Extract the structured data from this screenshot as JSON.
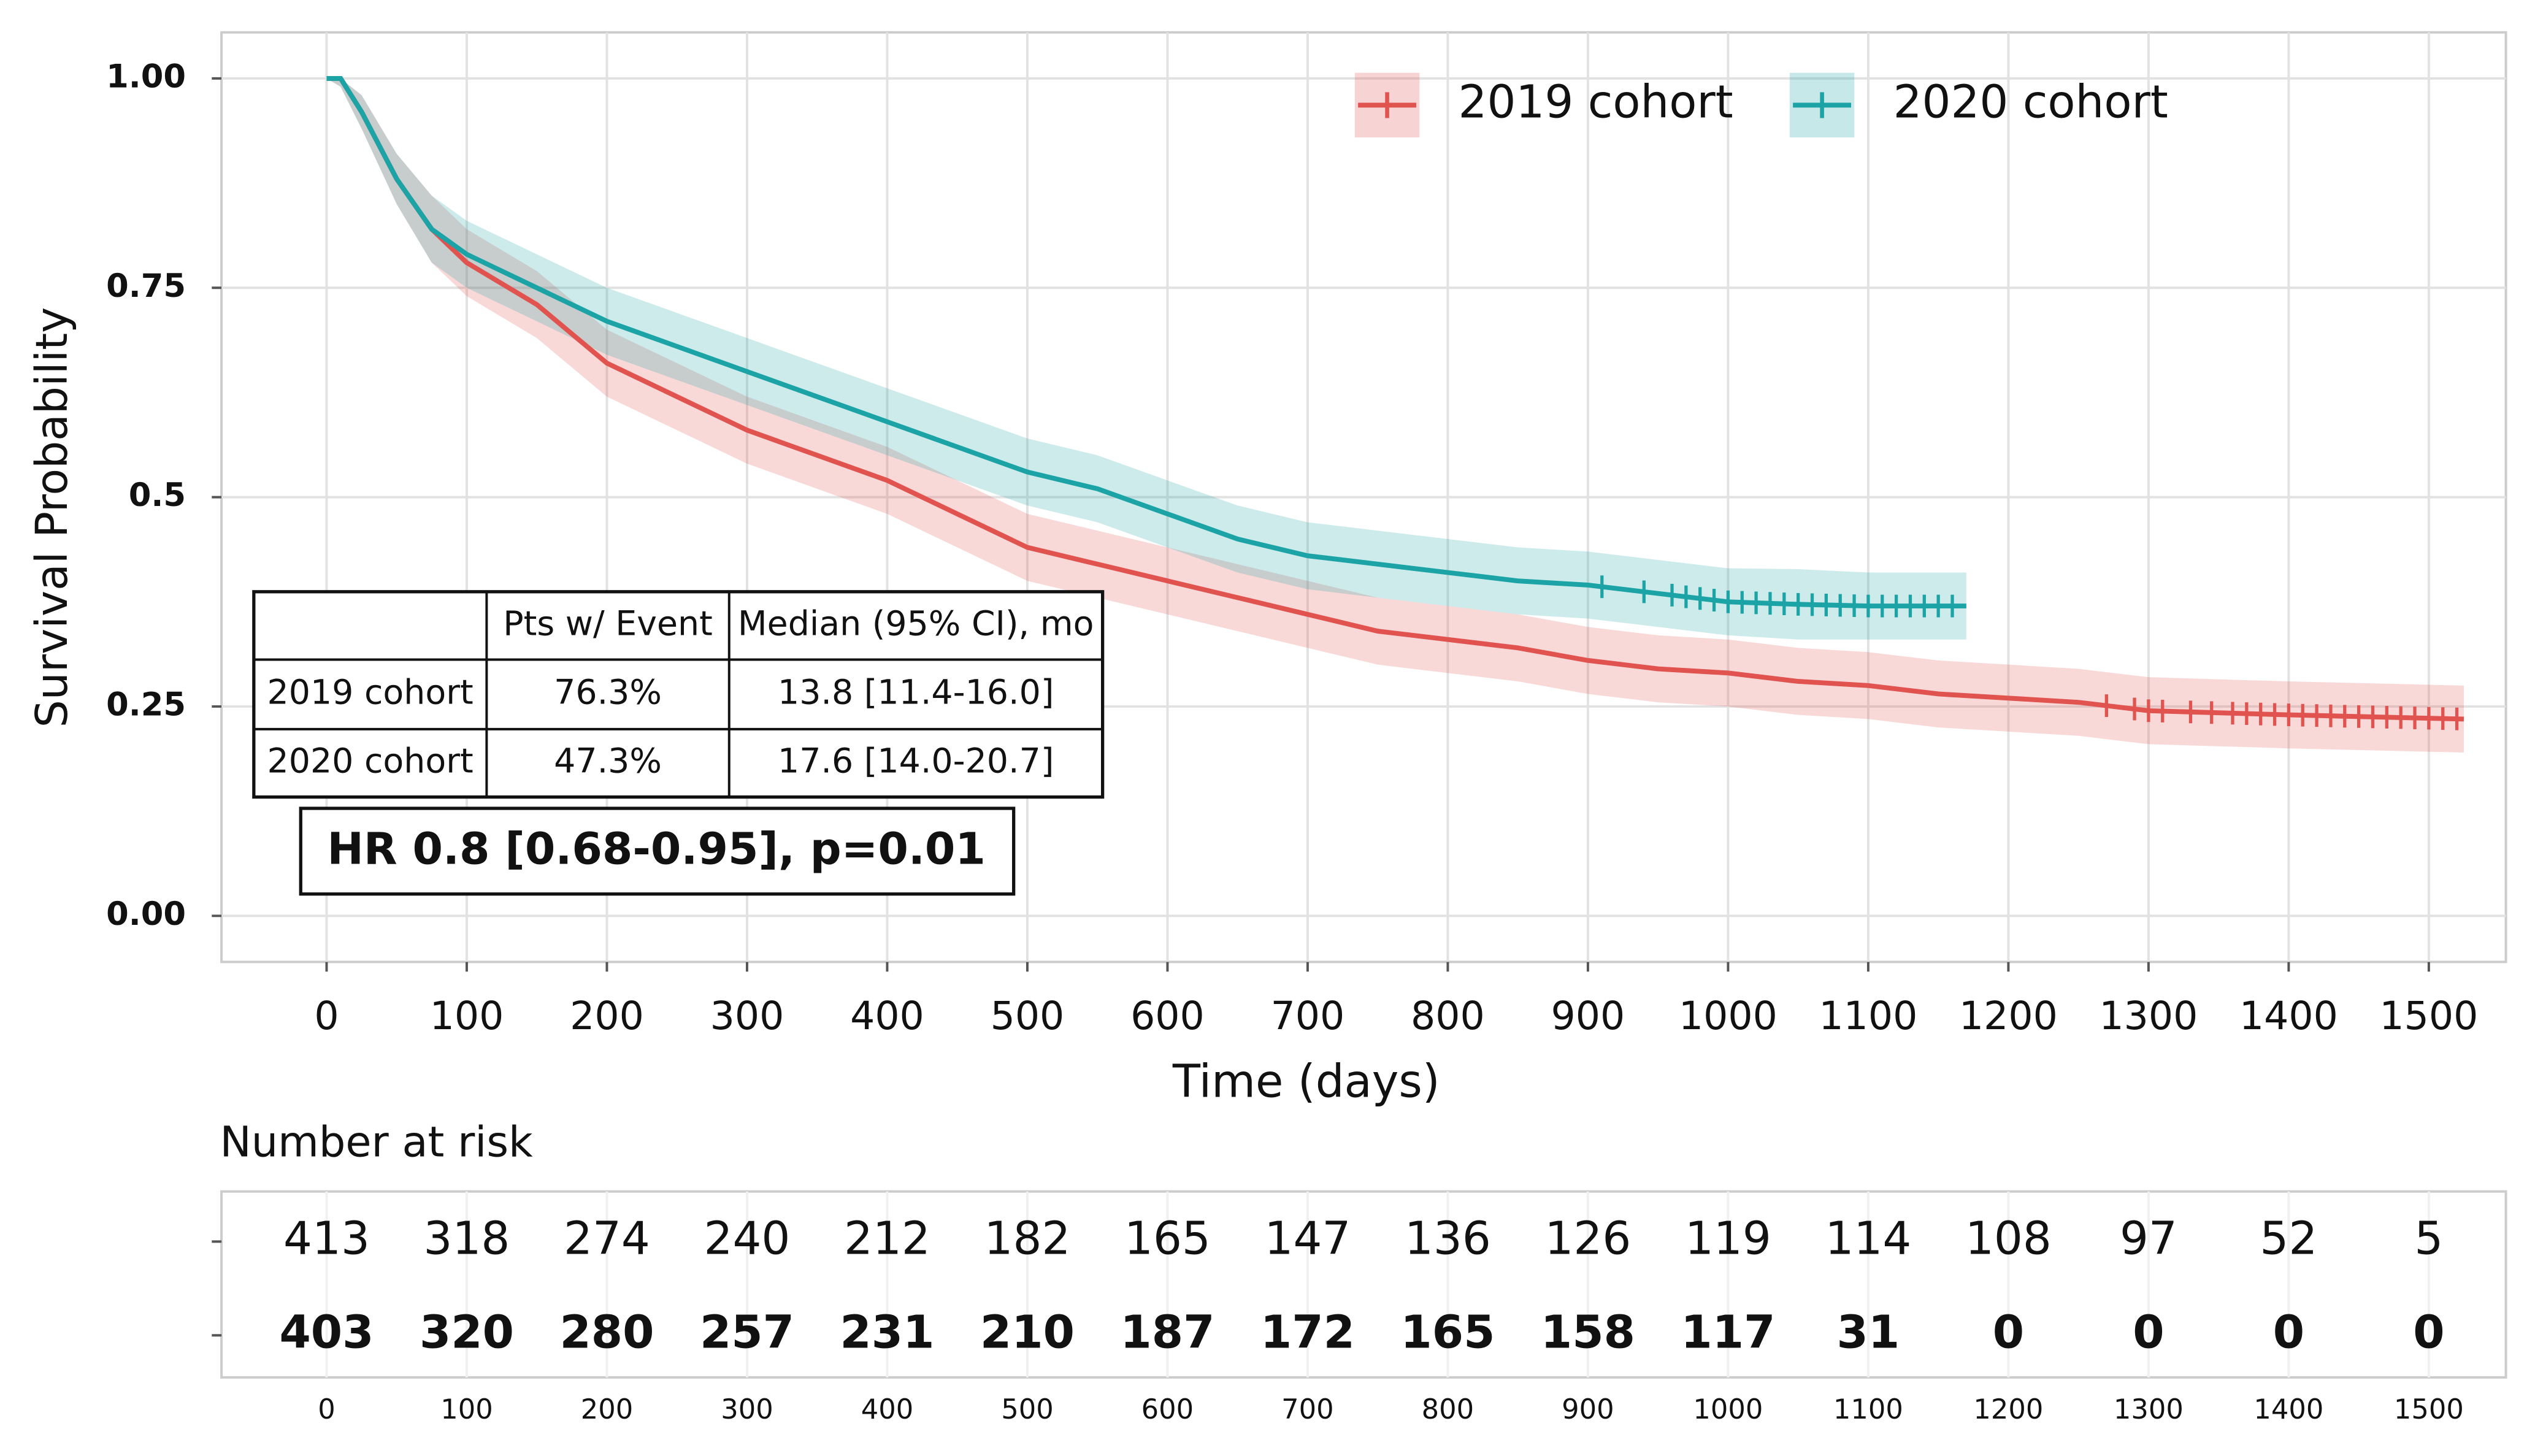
{
  "chart_data": {
    "type": "survival",
    "xlabel": "Time (days)",
    "ylabel": "Survival Probability",
    "xlim": [
      -75,
      1555
    ],
    "ylim": [
      -0.055,
      1.055
    ],
    "xticks": [
      0,
      100,
      200,
      300,
      400,
      500,
      600,
      700,
      800,
      900,
      1000,
      1100,
      1200,
      1300,
      1400,
      1500
    ],
    "yticks": [
      {
        "value": 0,
        "label": "0.00"
      },
      0.25,
      0.5,
      0.75,
      {
        "value": 1,
        "label": "1.00"
      }
    ],
    "grid": true,
    "legend": "top-right",
    "series": [
      {
        "name": "2019 cohort",
        "color": "#e0534f",
        "x": [
          0,
          10,
          25,
          50,
          75,
          100,
          150,
          200,
          250,
          300,
          350,
          400,
          450,
          500,
          550,
          600,
          650,
          700,
          750,
          800,
          850,
          900,
          950,
          1000,
          1050,
          1100,
          1150,
          1200,
          1250,
          1300,
          1400,
          1525
        ],
        "values": [
          1,
          1,
          0.96,
          0.88,
          0.82,
          0.78,
          0.73,
          0.66,
          0.62,
          0.58,
          0.55,
          0.52,
          0.48,
          0.44,
          0.42,
          0.4,
          0.38,
          0.36,
          0.34,
          0.33,
          0.32,
          0.305,
          0.295,
          0.29,
          0.28,
          0.275,
          0.265,
          0.26,
          0.255,
          0.245,
          0.24,
          0.235
        ],
        "lower": [
          1,
          0.99,
          0.94,
          0.85,
          0.78,
          0.74,
          0.69,
          0.62,
          0.58,
          0.54,
          0.51,
          0.48,
          0.44,
          0.4,
          0.38,
          0.36,
          0.34,
          0.32,
          0.3,
          0.29,
          0.28,
          0.265,
          0.255,
          0.25,
          0.24,
          0.235,
          0.225,
          0.22,
          0.215,
          0.205,
          0.2,
          0.195
        ],
        "upper": [
          1,
          1,
          0.98,
          0.91,
          0.86,
          0.82,
          0.77,
          0.7,
          0.66,
          0.62,
          0.59,
          0.56,
          0.52,
          0.48,
          0.46,
          0.44,
          0.42,
          0.4,
          0.38,
          0.37,
          0.36,
          0.345,
          0.335,
          0.33,
          0.32,
          0.315,
          0.305,
          0.3,
          0.295,
          0.285,
          0.28,
          0.275
        ],
        "censor_x": [
          1270,
          1290,
          1300,
          1310,
          1330,
          1345,
          1360,
          1370,
          1380,
          1390,
          1400,
          1410,
          1420,
          1430,
          1440,
          1450,
          1460,
          1470,
          1480,
          1490,
          1500,
          1510,
          1520
        ]
      },
      {
        "name": "2020 cohort",
        "color": "#1ba3a6",
        "x": [
          0,
          10,
          25,
          50,
          75,
          100,
          150,
          200,
          250,
          300,
          350,
          400,
          450,
          500,
          550,
          600,
          650,
          700,
          750,
          800,
          850,
          900,
          950,
          1000,
          1050,
          1100,
          1170
        ],
        "values": [
          1,
          1,
          0.96,
          0.88,
          0.82,
          0.79,
          0.75,
          0.71,
          0.68,
          0.65,
          0.62,
          0.59,
          0.56,
          0.53,
          0.51,
          0.48,
          0.45,
          0.43,
          0.42,
          0.41,
          0.4,
          0.395,
          0.385,
          0.375,
          0.372,
          0.37,
          0.37
        ],
        "lower": [
          1,
          0.99,
          0.94,
          0.85,
          0.78,
          0.75,
          0.71,
          0.67,
          0.64,
          0.61,
          0.58,
          0.55,
          0.52,
          0.49,
          0.47,
          0.44,
          0.41,
          0.39,
          0.38,
          0.37,
          0.36,
          0.355,
          0.345,
          0.335,
          0.33,
          0.33,
          0.33
        ],
        "upper": [
          1,
          1,
          0.98,
          0.91,
          0.86,
          0.83,
          0.79,
          0.75,
          0.72,
          0.69,
          0.66,
          0.63,
          0.6,
          0.57,
          0.55,
          0.52,
          0.49,
          0.47,
          0.46,
          0.45,
          0.44,
          0.435,
          0.425,
          0.415,
          0.414,
          0.41,
          0.41
        ],
        "censor_x": [
          910,
          940,
          960,
          970,
          980,
          990,
          1000,
          1010,
          1020,
          1030,
          1040,
          1050,
          1060,
          1070,
          1080,
          1090,
          1100,
          1110,
          1120,
          1130,
          1140,
          1150,
          1160
        ]
      }
    ],
    "summary_table": {
      "columns": [
        "Pts w/ Event",
        "Median (95% CI), mo"
      ],
      "rows": [
        [
          "2019 cohort",
          "76.3%",
          "13.8 [11.4-16.0]"
        ],
        [
          "2020 cohort",
          "47.3%",
          "17.6 [14.0-20.7]"
        ]
      ]
    },
    "annotation": "HR 0.8 [0.68-0.95], p=0.01",
    "risk_table": {
      "title": "Number at risk",
      "rows": [
        {
          "color": "#d9494b",
          "values": [
            413,
            318,
            274,
            240,
            212,
            182,
            165,
            147,
            136,
            126,
            119,
            114,
            108,
            97,
            52,
            5
          ]
        },
        {
          "color": "#1677c0",
          "values": [
            403,
            320,
            280,
            257,
            231,
            210,
            187,
            172,
            165,
            158,
            117,
            31,
            0,
            0,
            0,
            0
          ]
        }
      ]
    }
  }
}
